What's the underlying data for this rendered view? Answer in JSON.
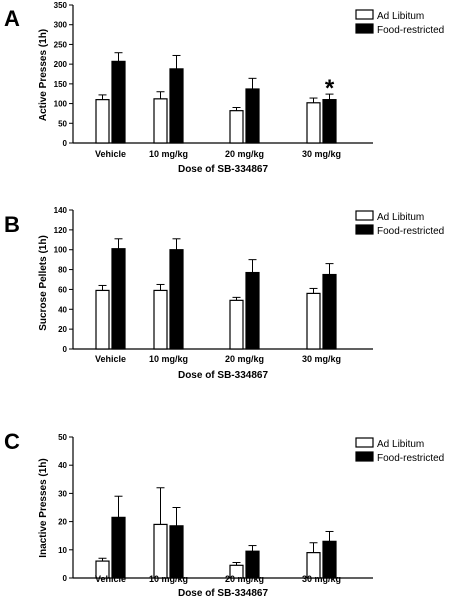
{
  "chart_data": [
    {
      "type": "bar",
      "panel_label": "A",
      "categories": [
        "Vehicle",
        "10 mg/kg",
        "20 mg/kg",
        "30 mg/kg"
      ],
      "series": [
        {
          "name": "Ad Libitum",
          "color": "#ffffff",
          "values": [
            110,
            112,
            82,
            102
          ],
          "errors": [
            12,
            18,
            8,
            12
          ]
        },
        {
          "name": "Food-restricted",
          "color": "#000000",
          "values": [
            207,
            188,
            137,
            110
          ],
          "errors": [
            22,
            34,
            27,
            14
          ]
        }
      ],
      "xlabel": "Dose of SB-334867",
      "ylabel": "Active Presses (1h)",
      "ylim": [
        0,
        350
      ],
      "yticks": [
        0,
        50,
        100,
        150,
        200,
        250,
        300,
        350
      ],
      "annotations": [
        {
          "text": "*",
          "category": "30 mg/kg"
        }
      ],
      "legend": "top-right",
      "grid": false
    },
    {
      "type": "bar",
      "panel_label": "B",
      "categories": [
        "Vehicle",
        "10 mg/kg",
        "20 mg/kg",
        "30 mg/kg"
      ],
      "series": [
        {
          "name": "Ad Libitum",
          "color": "#ffffff",
          "values": [
            59,
            59,
            49,
            56
          ],
          "errors": [
            5,
            6,
            3,
            5
          ]
        },
        {
          "name": "Food-restricted",
          "color": "#000000",
          "values": [
            101,
            100,
            77,
            75
          ],
          "errors": [
            10,
            11,
            13,
            11
          ]
        }
      ],
      "xlabel": "Dose of SB-334867",
      "ylabel": "Sucrose Pellets (1h)",
      "ylim": [
        0,
        140
      ],
      "yticks": [
        0,
        20,
        40,
        60,
        80,
        100,
        120,
        140
      ],
      "annotations": [],
      "legend": "top-right",
      "grid": false
    },
    {
      "type": "bar",
      "panel_label": "C",
      "categories": [
        "Vehicle",
        "10 mg/kg",
        "20 mg/kg",
        "30 mg/kg"
      ],
      "series": [
        {
          "name": "Ad Libitum",
          "color": "#ffffff",
          "values": [
            6,
            19,
            4.5,
            9
          ],
          "errors": [
            1,
            13,
            1,
            3.5
          ]
        },
        {
          "name": "Food-restricted",
          "color": "#000000",
          "values": [
            21.5,
            18.5,
            9.5,
            13
          ],
          "errors": [
            7.5,
            6.5,
            2,
            3.5
          ]
        }
      ],
      "xlabel": "Dose of SB-334867",
      "ylabel": "Inactive Presses (1h)",
      "ylim": [
        0,
        50
      ],
      "yticks": [
        0,
        10,
        20,
        30,
        40,
        50
      ],
      "annotations": [],
      "legend": "top-right",
      "grid": false
    }
  ]
}
